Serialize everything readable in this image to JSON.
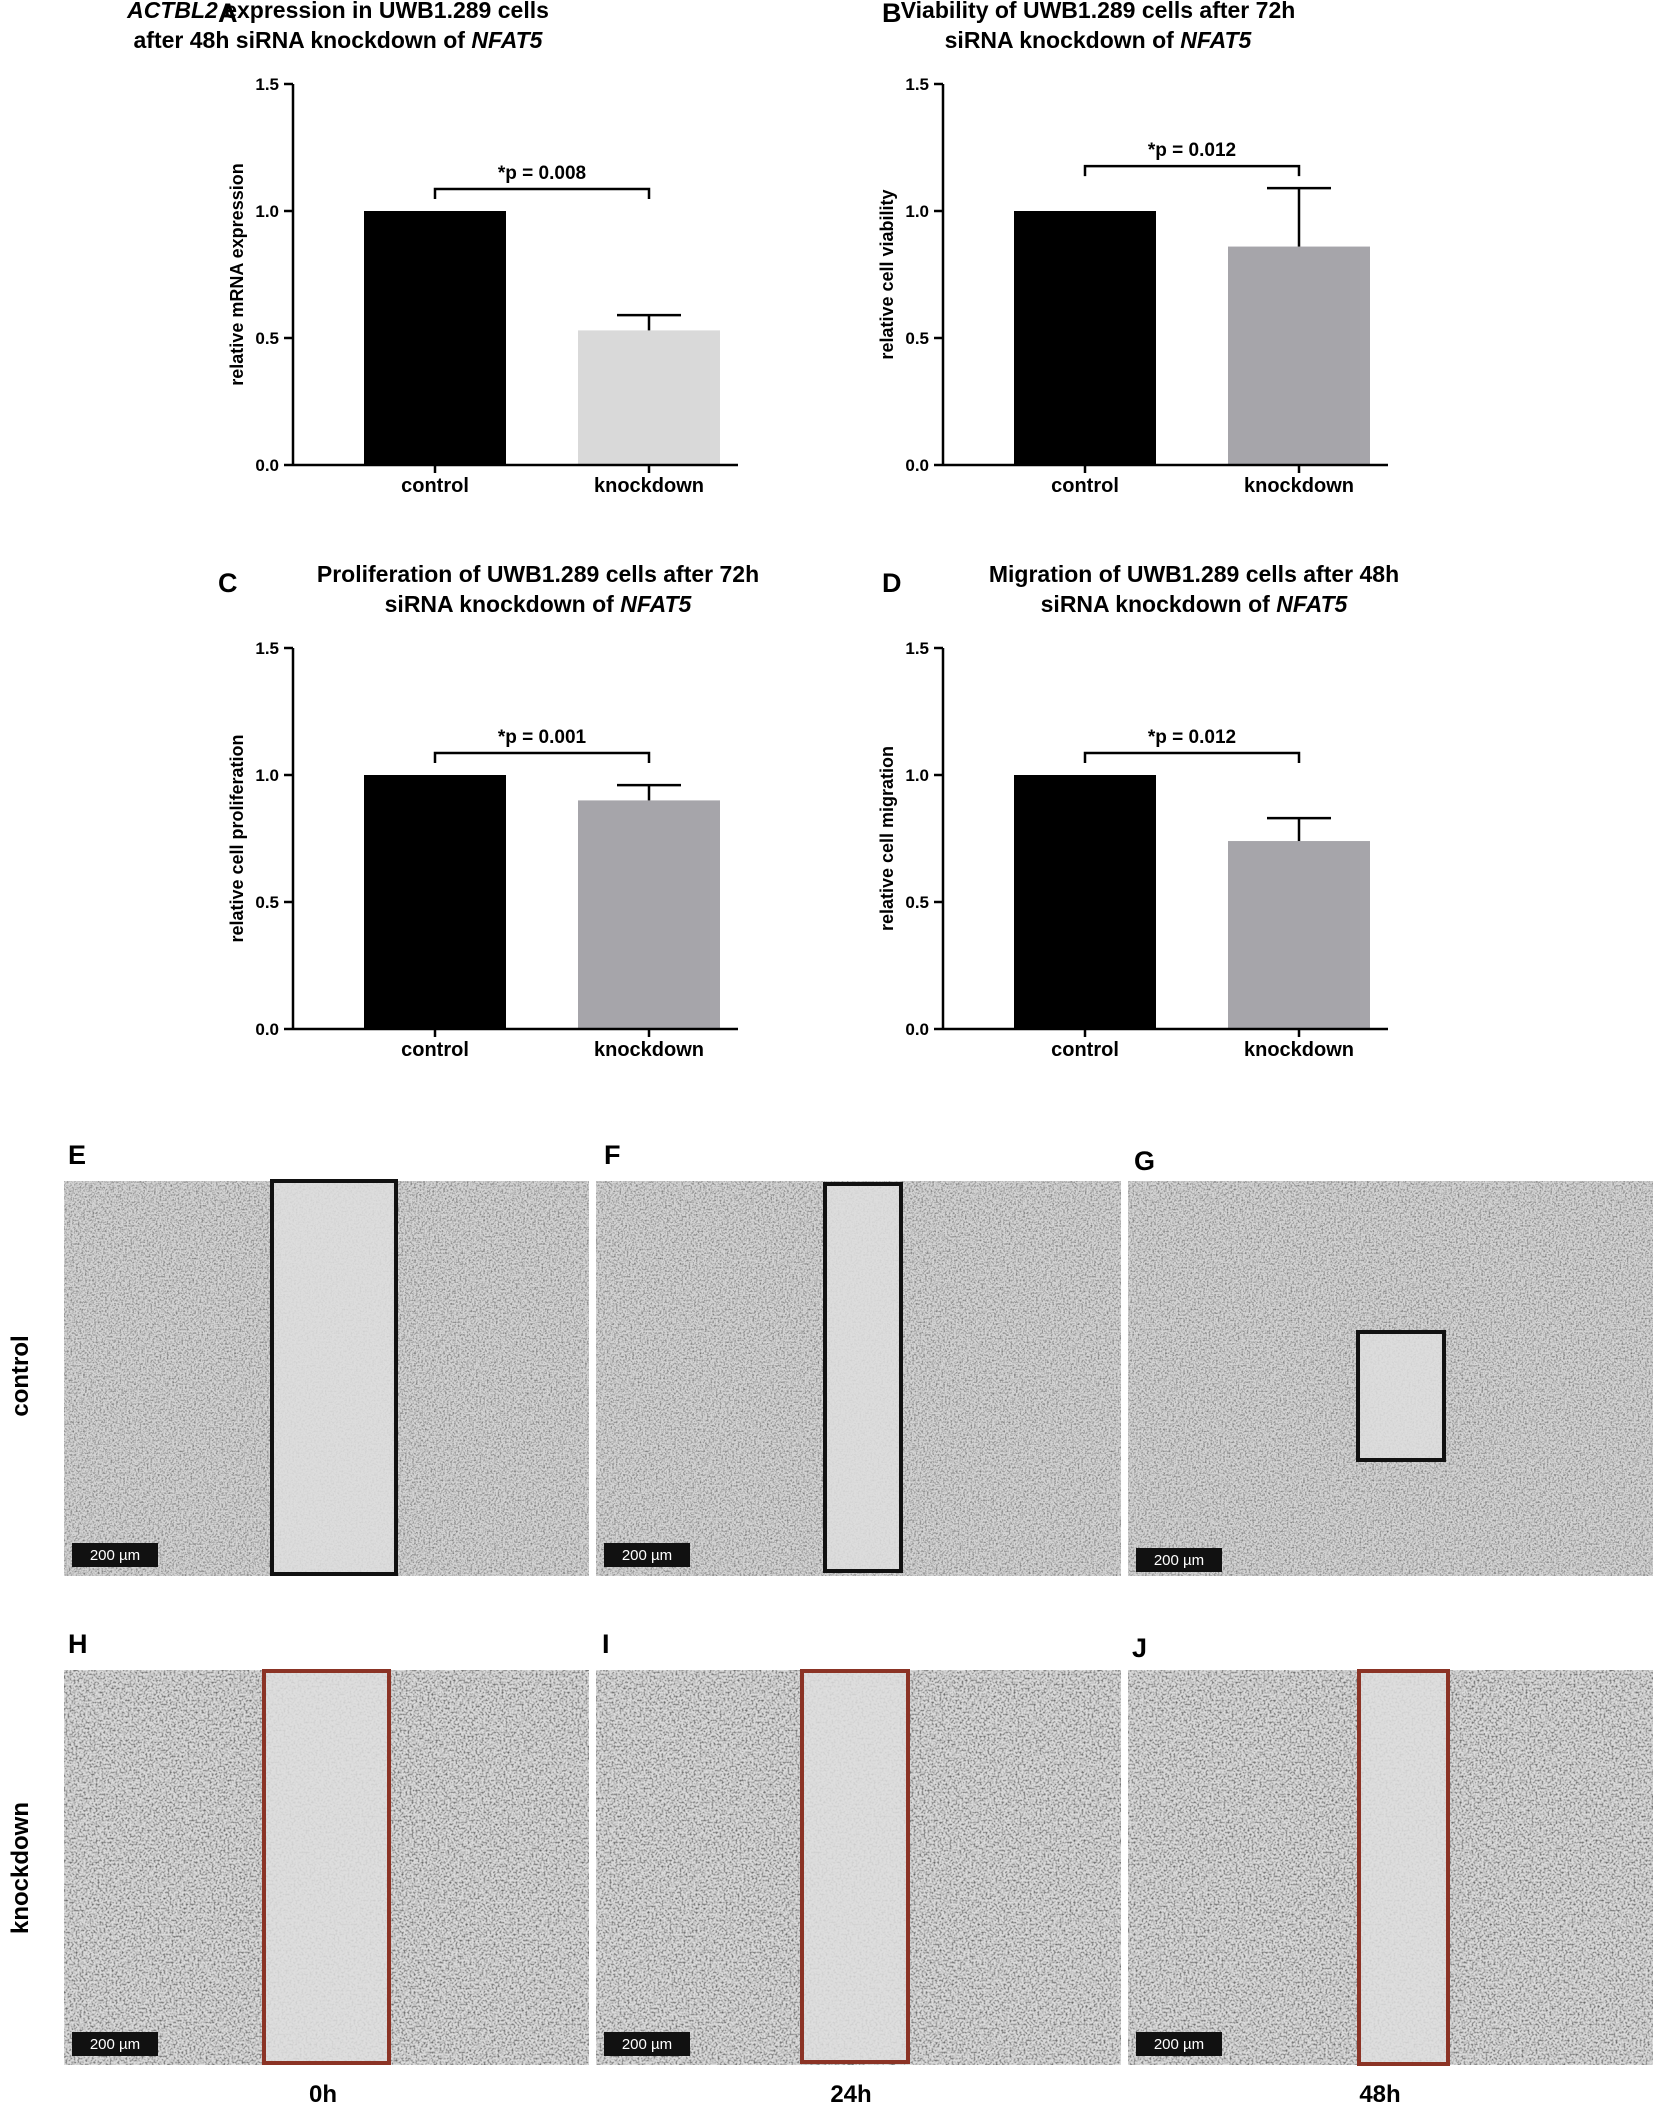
{
  "panel_letters": [
    "A",
    "B",
    "C",
    "D",
    "E",
    "F",
    "G",
    "H",
    "I",
    "J"
  ],
  "chart_data": [
    {
      "id": "A",
      "type": "bar",
      "title_line1": [
        {
          "text": "ACTBL2",
          "italic": true
        },
        {
          "text": " expression in UWB1.289 cells",
          "italic": false
        }
      ],
      "title_line2": [
        {
          "text": "after 48h siRNA knockdown of ",
          "italic": false
        },
        {
          "text": "NFAT5",
          "italic": true
        }
      ],
      "ylabel": "relative mRNA expression",
      "xlabel": "",
      "categories": [
        "control",
        "knockdown"
      ],
      "values": [
        1.0,
        0.53
      ],
      "errors": [
        0,
        0.06
      ],
      "colors": [
        "#000000",
        "#d9d9d9"
      ],
      "ylim": [
        0,
        1.5
      ],
      "yticks": [
        "0.0",
        "0.5",
        "1.0",
        "1.5"
      ],
      "significance": "*p = 0.008"
    },
    {
      "id": "B",
      "type": "bar",
      "title_line1": [
        {
          "text": "Viability of UWB1.289 cells after 72h",
          "italic": false
        }
      ],
      "title_line2": [
        {
          "text": "siRNA knockdown of ",
          "italic": false
        },
        {
          "text": "NFAT5",
          "italic": true
        }
      ],
      "ylabel": "relative cell viability",
      "xlabel": "",
      "categories": [
        "control",
        "knockdown"
      ],
      "values": [
        1.0,
        0.86
      ],
      "errors": [
        0,
        0.23
      ],
      "colors": [
        "#000000",
        "#a6a5aa"
      ],
      "ylim": [
        0,
        1.5
      ],
      "yticks": [
        "0.0",
        "0.5",
        "1.0",
        "1.5"
      ],
      "significance": "*p = 0.012"
    },
    {
      "id": "C",
      "type": "bar",
      "title_line1": [
        {
          "text": "Proliferation of UWB1.289 cells after 72h",
          "italic": false
        }
      ],
      "title_line2": [
        {
          "text": "siRNA knockdown of ",
          "italic": false
        },
        {
          "text": "NFAT5",
          "italic": true
        }
      ],
      "ylabel": "relative cell proliferation",
      "xlabel": "",
      "categories": [
        "control",
        "knockdown"
      ],
      "values": [
        1.0,
        0.9
      ],
      "errors": [
        0,
        0.06
      ],
      "colors": [
        "#000000",
        "#a6a5aa"
      ],
      "ylim": [
        0,
        1.5
      ],
      "yticks": [
        "0.0",
        "0.5",
        "1.0",
        "1.5"
      ],
      "significance": "*p = 0.001"
    },
    {
      "id": "D",
      "type": "bar",
      "title_line1": [
        {
          "text": "Migration of UWB1.289 cells after 48h",
          "italic": false
        }
      ],
      "title_line2": [
        {
          "text": "siRNA knockdown of ",
          "italic": false
        },
        {
          "text": "NFAT5",
          "italic": true
        }
      ],
      "ylabel": "relative cell migration",
      "xlabel": "",
      "categories": [
        "control",
        "knockdown"
      ],
      "values": [
        1.0,
        0.74
      ],
      "errors": [
        0,
        0.09
      ],
      "colors": [
        "#000000",
        "#a6a5aa"
      ],
      "ylim": [
        0,
        1.5
      ],
      "yticks": [
        "0.0",
        "0.5",
        "1.0",
        "1.5"
      ],
      "significance": "*p = 0.012"
    }
  ],
  "micrographs": {
    "row_labels": [
      "control",
      "knockdown"
    ],
    "time_labels": [
      "0h",
      "24h",
      "48h"
    ],
    "scale_bar": "200 µm",
    "control_box_color": "#111111",
    "knockdown_box_color": "#8b3325",
    "panels": [
      {
        "id": "E",
        "row": "control",
        "time": "0h"
      },
      {
        "id": "F",
        "row": "control",
        "time": "24h"
      },
      {
        "id": "G",
        "row": "control",
        "time": "48h"
      },
      {
        "id": "H",
        "row": "knockdown",
        "time": "0h"
      },
      {
        "id": "I",
        "row": "knockdown",
        "time": "24h"
      },
      {
        "id": "J",
        "row": "knockdown",
        "time": "48h"
      }
    ]
  }
}
